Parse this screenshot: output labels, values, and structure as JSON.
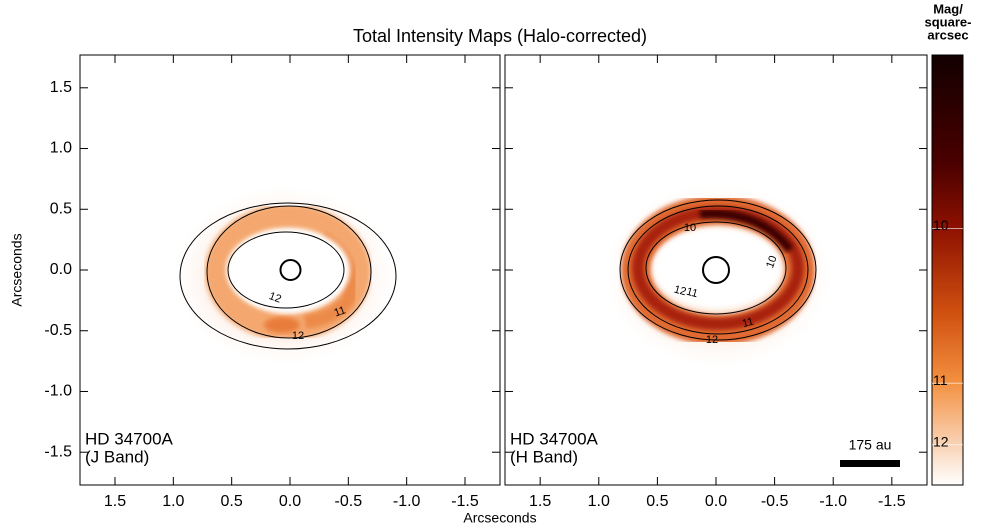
{
  "title": "Total Intensity Maps (Halo-corrected)",
  "x_label": "Arcseconds",
  "y_label": "Arcseconds",
  "chart_data": [
    {
      "type": "image",
      "labels": [
        "HD 34700A",
        "(J Band)"
      ],
      "xlim": [
        1.8,
        -1.8
      ],
      "ylim": [
        -1.77,
        1.77
      ],
      "xticks": [
        1.5,
        {
          "value": 1,
          "label": "1.0"
        },
        0.5,
        {
          "value": 0,
          "label": "0.0"
        },
        -0.5,
        {
          "value": -1,
          "label": "-1.0"
        },
        -1.5
      ],
      "yticks": [
        -1.5,
        {
          "value": -1,
          "label": "-1.0"
        },
        -0.5,
        {
          "value": 0,
          "label": "0.0"
        },
        0.5,
        {
          "value": 1,
          "label": "1.0"
        },
        1.5
      ],
      "contour_labels": [
        12,
        11,
        12
      ]
    },
    {
      "type": "image",
      "labels": [
        "HD 34700A",
        "(H Band)"
      ],
      "xlim": [
        1.8,
        -1.8
      ],
      "ylim": [
        -1.77,
        1.77
      ],
      "xticks": [
        1.5,
        {
          "value": 1,
          "label": "1.0"
        },
        0.5,
        {
          "value": 0,
          "label": "0.0"
        },
        -0.5,
        {
          "value": -1,
          "label": "-1.0"
        },
        -1.5
      ],
      "contour_labels": [
        10,
        12,
        11,
        11,
        12,
        10
      ],
      "scale_bar": "175 au"
    },
    {
      "type": "colorbar",
      "label_lines": [
        "Mag/",
        "square-",
        "arcsec"
      ],
      "scale": "magnitude",
      "ylim": [
        16.7,
        9.44
      ],
      "yticks": [
        10,
        11,
        12
      ]
    }
  ]
}
